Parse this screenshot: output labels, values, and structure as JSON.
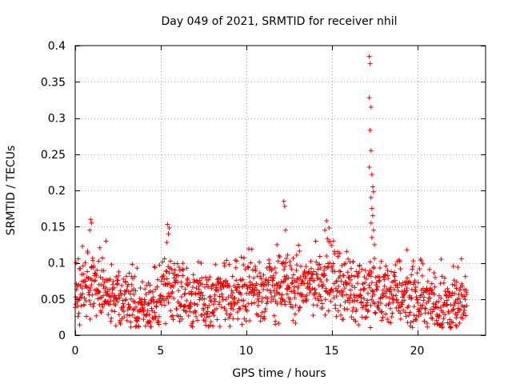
{
  "chart_data": {
    "type": "scatter",
    "title": "Day 049 of 2021, SRMTID for receiver nhil",
    "xlabel": "GPS time / hours",
    "ylabel": "SRMTID / TECUs",
    "xlim": [
      0,
      24
    ],
    "ylim": [
      0,
      0.4
    ],
    "x_ticks": [
      0,
      5,
      10,
      15,
      20
    ],
    "x_tick_labels": [
      "0",
      "5",
      "10",
      "15",
      "20"
    ],
    "y_ticks": [
      0,
      0.05,
      0.1,
      0.15,
      0.2,
      0.25,
      0.3,
      0.35,
      0.4
    ],
    "y_tick_labels": [
      "0",
      "0.05",
      "0.1",
      "0.15",
      "0.2",
      "0.25",
      "0.3",
      "0.35",
      "0.4"
    ],
    "grid": true,
    "marker": "+",
    "marker_color": "#ee0000",
    "series": [
      {
        "name": "nhil",
        "x_range": [
          0,
          22.9
        ],
        "baseline_profile": [
          [
            0,
            0.06
          ],
          [
            1,
            0.075
          ],
          [
            2,
            0.055
          ],
          [
            3,
            0.05
          ],
          [
            4,
            0.04
          ],
          [
            4.5,
            0.035
          ],
          [
            5,
            0.06
          ],
          [
            6,
            0.07
          ],
          [
            7,
            0.05
          ],
          [
            8,
            0.045
          ],
          [
            9,
            0.055
          ],
          [
            10,
            0.065
          ],
          [
            11,
            0.06
          ],
          [
            12,
            0.07
          ],
          [
            13,
            0.065
          ],
          [
            14,
            0.075
          ],
          [
            15,
            0.08
          ],
          [
            16,
            0.065
          ],
          [
            17,
            0.06
          ],
          [
            18,
            0.055
          ],
          [
            19,
            0.06
          ],
          [
            20,
            0.05
          ],
          [
            21,
            0.045
          ],
          [
            22,
            0.04
          ],
          [
            22.9,
            0.045
          ]
        ],
        "peaks": [
          [
            0.9,
            0.16
          ],
          [
            0.95,
            0.155
          ],
          [
            0.85,
            0.145
          ],
          [
            1.8,
            0.13
          ],
          [
            5.4,
            0.153
          ],
          [
            5.5,
            0.148
          ],
          [
            5.45,
            0.14
          ],
          [
            5.35,
            0.128
          ],
          [
            11.8,
            0.125
          ],
          [
            12.2,
            0.185
          ],
          [
            12.25,
            0.178
          ],
          [
            12.3,
            0.145
          ],
          [
            14.7,
            0.158
          ],
          [
            14.6,
            0.145
          ],
          [
            17.2,
            0.385
          ],
          [
            17.25,
            0.375
          ],
          [
            17.2,
            0.328
          ],
          [
            17.3,
            0.315
          ],
          [
            17.25,
            0.283
          ],
          [
            17.3,
            0.255
          ],
          [
            17.2,
            0.232
          ],
          [
            17.35,
            0.222
          ],
          [
            17.4,
            0.205
          ],
          [
            17.45,
            0.198
          ],
          [
            17.3,
            0.19
          ],
          [
            17.35,
            0.175
          ],
          [
            17.4,
            0.165
          ],
          [
            17.3,
            0.155
          ],
          [
            17.45,
            0.145
          ],
          [
            17.35,
            0.135
          ],
          [
            17.5,
            0.125
          ],
          [
            19.4,
            0.118
          ],
          [
            20.2,
            0.105
          ],
          [
            21.4,
            0.105
          ],
          [
            4.4,
            0.012
          ],
          [
            4.3,
            0.018
          ],
          [
            22.3,
            0.012
          ],
          [
            11.7,
            0.015
          ]
        ]
      }
    ]
  }
}
